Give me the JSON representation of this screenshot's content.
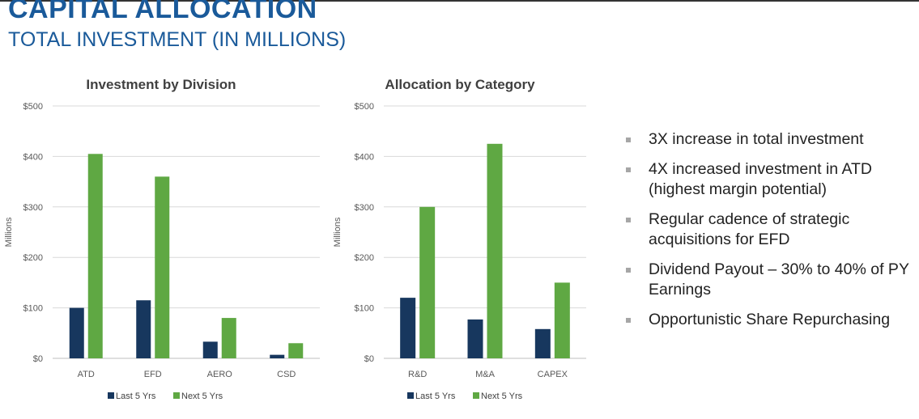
{
  "header": {
    "title": "CAPITAL ALLOCATION",
    "subtitle": "TOTAL INVESTMENT (IN MILLIONS)"
  },
  "colors": {
    "last": "#17375e",
    "next": "#5fa843",
    "title": "#1a5a9a",
    "grid": "#d9d9d9",
    "bullet": "#a6a6a6"
  },
  "chart_data": [
    {
      "type": "bar",
      "title": "Investment by Division",
      "ylabel": "Millions",
      "ylim": [
        0,
        500
      ],
      "yticks": [
        0,
        100,
        200,
        300,
        400,
        500
      ],
      "ytick_labels": [
        "$0",
        "$100",
        "$200",
        "$300",
        "$400",
        "$500"
      ],
      "categories": [
        "ATD",
        "EFD",
        "AERO",
        "CSD"
      ],
      "series": [
        {
          "name": "Last 5 Yrs",
          "values": [
            100,
            115,
            33,
            7
          ]
        },
        {
          "name": "Next 5 Yrs",
          "values": [
            405,
            360,
            80,
            30
          ]
        }
      ],
      "grid": true,
      "legend": "bottom"
    },
    {
      "type": "bar",
      "title": "Allocation by Category",
      "ylabel": "Millions",
      "ylim": [
        0,
        500
      ],
      "yticks": [
        0,
        100,
        200,
        300,
        400,
        500
      ],
      "ytick_labels": [
        "$0",
        "$100",
        "$200",
        "$300",
        "$400",
        "$500"
      ],
      "categories": [
        "R&D",
        "M&A",
        "CAPEX"
      ],
      "series": [
        {
          "name": "Last 5 Yrs",
          "values": [
            120,
            77,
            58
          ]
        },
        {
          "name": "Next 5 Yrs",
          "values": [
            300,
            425,
            150
          ]
        }
      ],
      "grid": true,
      "legend": "bottom"
    }
  ],
  "bullets": [
    "3X increase in total investment",
    "4X increased investment in ATD (highest margin potential)",
    "Regular cadence of strategic acquisitions for EFD",
    "Dividend Payout – 30% to 40% of PY Earnings",
    "Opportunistic Share Repurchasing"
  ]
}
